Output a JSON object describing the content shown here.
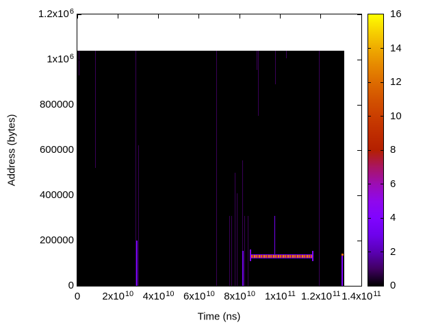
{
  "chart_data": {
    "type": "heatmap",
    "title": "",
    "xlabel": "Time (ns)",
    "ylabel": "Address (bytes)",
    "xlim": [
      0,
      140000000000.0
    ],
    "ylim": [
      0,
      1200000.0
    ],
    "zlim": [
      0,
      16
    ],
    "grid": false,
    "legend_position": "colorbar-right",
    "x_ticks": [
      {
        "value": 0,
        "base": "0",
        "exp": ""
      },
      {
        "value": 20000000000.0,
        "base": "2x10",
        "exp": "10"
      },
      {
        "value": 40000000000.0,
        "base": "4x10",
        "exp": "10"
      },
      {
        "value": 60000000000.0,
        "base": "6x10",
        "exp": "10"
      },
      {
        "value": 80000000000.0,
        "base": "8x10",
        "exp": "10"
      },
      {
        "value": 100000000000.0,
        "base": "1x10",
        "exp": "11"
      },
      {
        "value": 120000000000.0,
        "base": "1.2x10",
        "exp": "11"
      },
      {
        "value": 140000000000.0,
        "base": "1.4x10",
        "exp": "11"
      }
    ],
    "y_ticks": [
      {
        "value": 0,
        "base": "0",
        "exp": ""
      },
      {
        "value": 200000,
        "base": "200000",
        "exp": ""
      },
      {
        "value": 400000,
        "base": "400000",
        "exp": ""
      },
      {
        "value": 600000,
        "base": "600000",
        "exp": ""
      },
      {
        "value": 800000,
        "base": "800000",
        "exp": ""
      },
      {
        "value": 1000000,
        "base": "1x10",
        "exp": "6"
      },
      {
        "value": 1200000,
        "base": "1.2x10",
        "exp": "6"
      }
    ],
    "colorbar": {
      "ticks": [
        16,
        14,
        12,
        10,
        8,
        6,
        4,
        2,
        0
      ],
      "palette": [
        [
          0,
          "#000000"
        ],
        [
          1,
          "#400062"
        ],
        [
          2,
          "#5a00b4"
        ],
        [
          3,
          "#6e02ec"
        ],
        [
          4,
          "#8004ff"
        ],
        [
          5,
          "#8f08ec"
        ],
        [
          6,
          "#9c0db4"
        ],
        [
          7,
          "#a91562"
        ],
        [
          8,
          "#b42000"
        ],
        [
          9,
          "#bf2d00"
        ],
        [
          10,
          "#ca3e00"
        ],
        [
          11,
          "#d35300"
        ],
        [
          12,
          "#dd6c00"
        ],
        [
          13,
          "#e68900"
        ],
        [
          14,
          "#efab00"
        ],
        [
          15,
          "#f7d200"
        ],
        [
          16,
          "#ffff00"
        ]
      ]
    },
    "background_value": 0,
    "background_value_color": "#000000",
    "data_extent": {
      "t_max": 131600000000.0,
      "a_max": 1040000.0
    },
    "vlines": [
      {
        "t": 950000000.0,
        "a0": 930000.0,
        "a1": 1040000.0,
        "v": 0.9,
        "w": 1
      },
      {
        "t": 8800000000.0,
        "a0": 520000.0,
        "a1": 1040000.0,
        "v": 0.9,
        "w": 1
      },
      {
        "t": 29000000000.0,
        "a0": 0,
        "a1": 1040000.0,
        "v": 0.9,
        "w": 1
      },
      {
        "t": 29500000000.0,
        "a0": 0,
        "a1": 200000.0,
        "v": 3.5,
        "w": 2
      },
      {
        "t": 30200000000.0,
        "a0": 0,
        "a1": 620000.0,
        "v": 0.9,
        "w": 1
      },
      {
        "t": 68700000000.0,
        "a0": 0,
        "a1": 1040000.0,
        "v": 0.9,
        "w": 1
      },
      {
        "t": 75200000000.0,
        "a0": 0,
        "a1": 310000.0,
        "v": 0.9,
        "w": 1
      },
      {
        "t": 76000000000.0,
        "a0": 0,
        "a1": 310000.0,
        "v": 0.9,
        "w": 1
      },
      {
        "t": 77600000000.0,
        "a0": 0,
        "a1": 500000.0,
        "v": 0.9,
        "w": 1
      },
      {
        "t": 78900000000.0,
        "a0": 0,
        "a1": 410000.0,
        "v": 0.9,
        "w": 1
      },
      {
        "t": 81500000000.0,
        "a0": 0,
        "a1": 555000.0,
        "v": 0.9,
        "w": 1
      },
      {
        "t": 81500000000.0,
        "a0": 0,
        "a1": 155000.0,
        "v": 3.5,
        "w": 2
      },
      {
        "t": 82500000000.0,
        "a0": 0,
        "a1": 310000.0,
        "v": 0.9,
        "w": 1
      },
      {
        "t": 84300000000.0,
        "a0": 0,
        "a1": 310000.0,
        "v": 0.9,
        "w": 1
      },
      {
        "t": 88400000000.0,
        "a0": 955000.0,
        "a1": 1040000.0,
        "v": 0.9,
        "w": 1
      },
      {
        "t": 89300000000.0,
        "a0": 750000.0,
        "a1": 1040000.0,
        "v": 0.9,
        "w": 1
      },
      {
        "t": 97200000000.0,
        "a0": 130000.0,
        "a1": 310000.0,
        "v": 3.5,
        "w": 1
      },
      {
        "t": 97800000000.0,
        "a0": 890000.0,
        "a1": 1040000.0,
        "v": 0.9,
        "w": 1
      },
      {
        "t": 103100000000.0,
        "a0": 1005000.0,
        "a1": 1040000.0,
        "v": 0.9,
        "w": 1
      },
      {
        "t": 119400000000.0,
        "a0": 0,
        "a1": 1040000.0,
        "v": 0.9,
        "w": 1
      },
      {
        "t": 85500000000.0,
        "a0": 108000.0,
        "a1": 160000.0,
        "v": 4,
        "w": 2
      },
      {
        "t": 115900000000.0,
        "a0": 110000.0,
        "a1": 155000.0,
        "v": 4,
        "w": 2
      },
      {
        "t": 130600000000.0,
        "a0": 0,
        "a1": 136000.0,
        "v": 4,
        "w": 2
      }
    ],
    "hband": {
      "t0": 85700000000.0,
      "t1": 115700000000.0,
      "a": 130000.0,
      "edge_v": 3,
      "dash_v": [
        12,
        7,
        13,
        6
      ]
    },
    "dots": [
      {
        "t": 130600000000.0,
        "a": 138000.0,
        "v": 12,
        "s": 3
      }
    ]
  }
}
